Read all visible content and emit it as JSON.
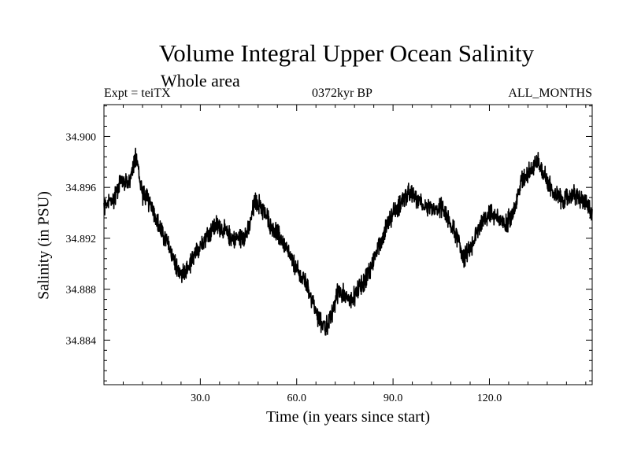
{
  "chart_data": {
    "type": "line",
    "title": "Volume Integral Upper Ocean Salinity",
    "subtitle": "Whole area",
    "header_left": "Expt = teiTX",
    "header_center": "0372kyr BP",
    "header_right": "ALL_MONTHS",
    "xlabel": "Time (in years since start)",
    "ylabel": "Salinity (in PSU)",
    "xlim": [
      0,
      152
    ],
    "ylim": [
      34.8805,
      34.9025
    ],
    "x_ticks": [
      30.0,
      60.0,
      90.0,
      120.0
    ],
    "x_tick_labels": [
      "30.0",
      "60.0",
      "90.0",
      "120.0"
    ],
    "y_ticks": [
      34.884,
      34.888,
      34.892,
      34.896,
      34.9
    ],
    "y_tick_labels": [
      "34.884",
      "34.888",
      "34.892",
      "34.896",
      "34.900"
    ],
    "grid": false,
    "series": [
      {
        "name": "Salinity",
        "color": "#000000",
        "noise_amplitude": 0.0011,
        "points_per_year": 12,
        "x": [
          0,
          3,
          5,
          8,
          10,
          12,
          15,
          17,
          20,
          23,
          25,
          28,
          30,
          33,
          35,
          38,
          40,
          42,
          45,
          47,
          49,
          52,
          55,
          58,
          60,
          63,
          65,
          67,
          69,
          71,
          73,
          75,
          77,
          79,
          82,
          85,
          88,
          90,
          93,
          95,
          98,
          100,
          103,
          105,
          108,
          110,
          112,
          114,
          117,
          120,
          123,
          125,
          128,
          130,
          133,
          135,
          138,
          140,
          143,
          146,
          149,
          152
        ],
        "y": [
          34.8945,
          34.895,
          34.8965,
          34.8965,
          34.8985,
          34.8955,
          34.8945,
          34.893,
          34.8915,
          34.8895,
          34.889,
          34.8905,
          34.8915,
          34.8925,
          34.893,
          34.8925,
          34.892,
          34.892,
          34.8925,
          34.895,
          34.8945,
          34.893,
          34.892,
          34.8905,
          34.8895,
          34.8885,
          34.887,
          34.8855,
          34.885,
          34.886,
          34.888,
          34.8875,
          34.887,
          34.888,
          34.889,
          34.891,
          34.893,
          34.894,
          34.895,
          34.8955,
          34.895,
          34.8945,
          34.894,
          34.8945,
          34.893,
          34.892,
          34.8905,
          34.891,
          34.893,
          34.894,
          34.8935,
          34.893,
          34.8945,
          34.8965,
          34.8975,
          34.898,
          34.8965,
          34.8955,
          34.895,
          34.8955,
          34.895,
          34.894
        ]
      }
    ]
  }
}
